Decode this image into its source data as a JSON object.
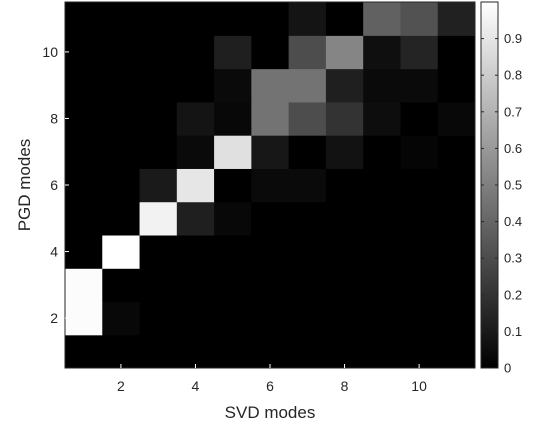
{
  "chart_data": {
    "type": "heatmap",
    "title": "",
    "xlabel": "SVD modes",
    "ylabel": "PGD modes",
    "x": [
      0,
      1,
      2,
      3,
      4,
      5,
      6,
      7,
      8,
      9,
      10,
      11
    ],
    "y": [
      1,
      2,
      3,
      4,
      5,
      6,
      7,
      8,
      9,
      10,
      11
    ],
    "xlim": [
      0.5,
      11.5
    ],
    "ylim": [
      0.5,
      11.5
    ],
    "xticks": [
      2,
      4,
      6,
      8,
      10
    ],
    "yticks": [
      2,
      4,
      6,
      8,
      10
    ],
    "colormap": "gray",
    "clim": [
      0,
      1
    ],
    "colorbar": {
      "ticks": [
        0,
        0.1,
        0.2,
        0.3,
        0.4,
        0.5,
        0.6,
        0.7,
        0.8,
        0.9
      ],
      "labels": [
        "0",
        "0.1",
        "0.2",
        "0.3",
        "0.4",
        "0.5",
        "0.6",
        "0.7",
        "0.8",
        "0.9"
      ],
      "placement": "right"
    },
    "values": [
      [
        0,
        0,
        0,
        0,
        0,
        0,
        0,
        0,
        0,
        0,
        0,
        0
      ],
      [
        0,
        0.99,
        0.03,
        0,
        0,
        0,
        0,
        0,
        0,
        0,
        0,
        0
      ],
      [
        0,
        0.99,
        0,
        0,
        0,
        0,
        0,
        0,
        0,
        0,
        0,
        0
      ],
      [
        0,
        0,
        1.0,
        0,
        0,
        0,
        0,
        0,
        0,
        0,
        0,
        0
      ],
      [
        0,
        0,
        0,
        0.95,
        0.12,
        0.03,
        0,
        0,
        0,
        0,
        0,
        0
      ],
      [
        0,
        0,
        0,
        0.1,
        0.9,
        0,
        0.04,
        0.04,
        0,
        0,
        0,
        0
      ],
      [
        0,
        0,
        0,
        0,
        0.04,
        0.88,
        0.09,
        0,
        0.07,
        0,
        0.02,
        0
      ],
      [
        0,
        0,
        0,
        0,
        0.08,
        0.03,
        0.45,
        0.3,
        0.2,
        0.05,
        0,
        0.03
      ],
      [
        0,
        0,
        0,
        0,
        0,
        0.04,
        0.45,
        0.45,
        0.12,
        0.04,
        0.04,
        0
      ],
      [
        0,
        0,
        0,
        0,
        0,
        0.12,
        0,
        0.3,
        0.52,
        0.06,
        0.14,
        0
      ],
      [
        0,
        0,
        0,
        0,
        0,
        0,
        0,
        0.08,
        0,
        0.38,
        0.32,
        0.13
      ]
    ]
  }
}
